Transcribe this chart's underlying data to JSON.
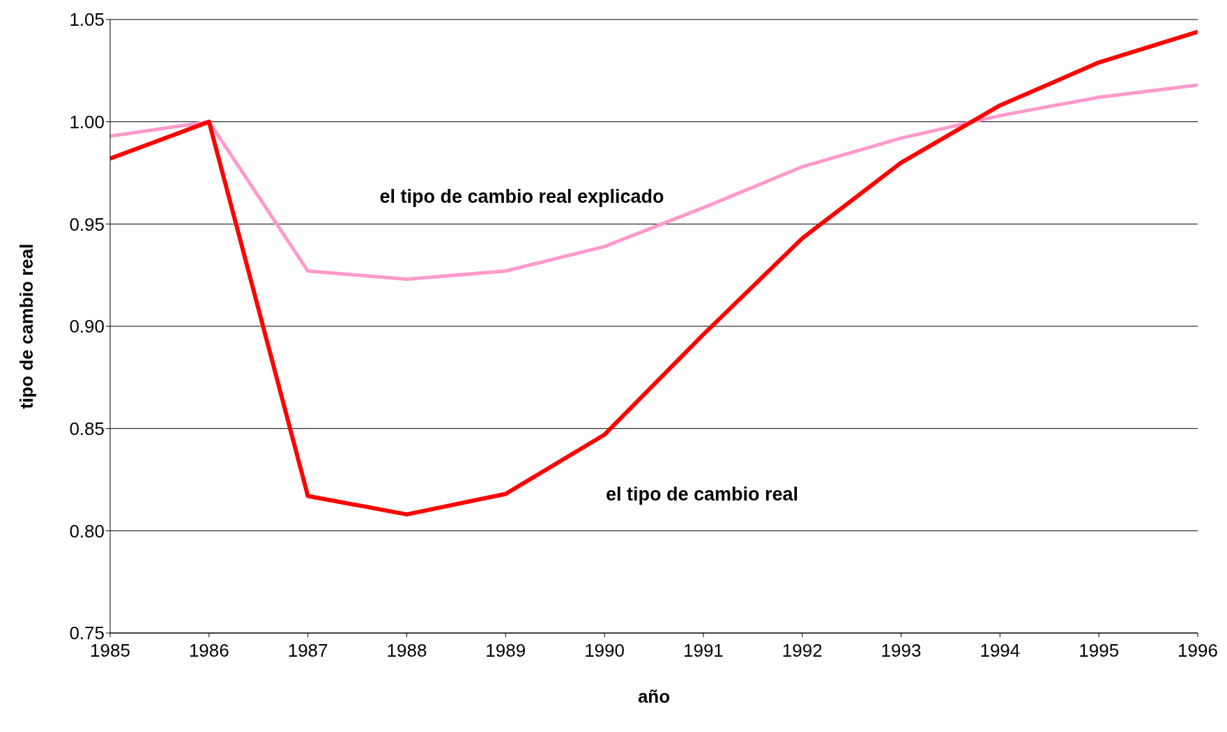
{
  "chart_data": {
    "type": "line",
    "xlabel": "año",
    "ylabel": "tipo de cambio real",
    "x": [
      1985,
      1986,
      1987,
      1988,
      1989,
      1990,
      1991,
      1992,
      1993,
      1994,
      1995,
      1996
    ],
    "series": [
      {
        "name": "el tipo de cambio real explicado",
        "color": "#ff99cc",
        "values": [
          0.993,
          1.0,
          0.927,
          0.923,
          0.927,
          0.939,
          0.958,
          0.978,
          0.992,
          1.003,
          1.012,
          1.018
        ]
      },
      {
        "name": "el tipo de cambio real",
        "color": "#ff0000",
        "values": [
          0.982,
          1.0,
          0.817,
          0.808,
          0.818,
          0.847,
          0.896,
          0.943,
          0.98,
          1.008,
          1.029,
          1.044
        ]
      }
    ],
    "xlim": [
      1985,
      1996
    ],
    "xticks": [
      1985,
      1986,
      1987,
      1988,
      1989,
      1990,
      1991,
      1992,
      1993,
      1994,
      1995,
      1996
    ],
    "ylim": [
      0.75,
      1.05
    ],
    "yticks": [
      0.75,
      {
        "value": 0.8,
        "label": "0.80"
      },
      0.85,
      {
        "value": 0.9,
        "label": "0.90"
      },
      0.95,
      {
        "value": 1,
        "label": "1.00"
      },
      1.05
    ],
    "grid": "y",
    "legend": false,
    "marker": "none",
    "line_style": "solid"
  }
}
